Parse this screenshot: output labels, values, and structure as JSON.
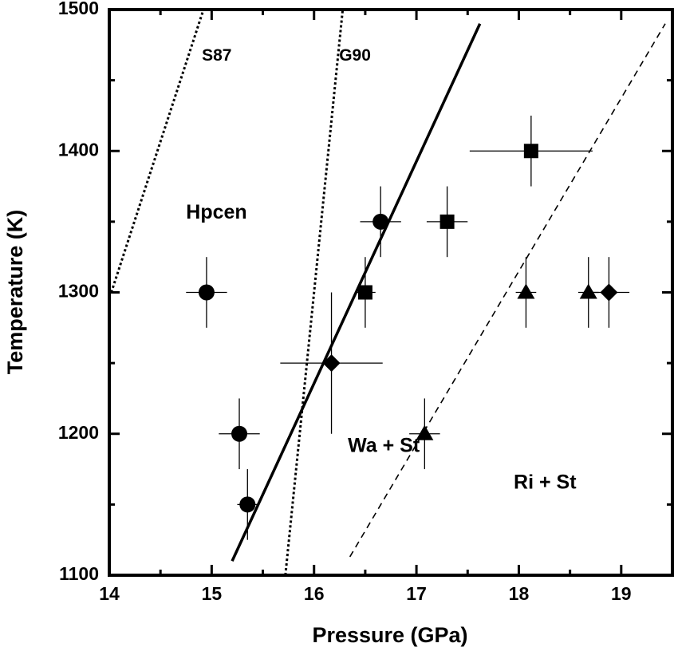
{
  "chart_data": {
    "type": "scatter",
    "xlabel": "Pressure (GPa)",
    "ylabel": "Temperature (K)",
    "xlim": [
      14,
      19.5
    ],
    "ylim": [
      1100,
      1500
    ],
    "x_ticks": [
      "14",
      "15",
      "16",
      "17",
      "18",
      "19"
    ],
    "y_ticks": [
      "1100",
      "1200",
      "1300",
      "1400",
      "1500"
    ],
    "grid": false,
    "region_labels": [
      {
        "text": "Hpcen",
        "x": 14.75,
        "y": 1356
      },
      {
        "text": "Wa + St",
        "x": 16.33,
        "y": 1191
      },
      {
        "text": "Ri + St",
        "x": 17.95,
        "y": 1165
      }
    ],
    "lines": [
      {
        "label": "S87",
        "style": "dotted",
        "x": [
          14.02,
          14.92
        ],
        "y": [
          1300,
          1500
        ],
        "label_at": [
          15.05,
          1467
        ]
      },
      {
        "label": "G90",
        "style": "dotted",
        "x": [
          15.72,
          16.28
        ],
        "y": [
          1100,
          1500
        ],
        "label_at": [
          16.4,
          1467
        ]
      },
      {
        "label": "",
        "style": "solid",
        "x": [
          15.2,
          17.62
        ],
        "y": [
          1110,
          1490
        ]
      },
      {
        "label": "",
        "style": "dashed",
        "x": [
          16.35,
          19.43
        ],
        "y": [
          1113,
          1490
        ]
      }
    ],
    "series": [
      {
        "marker": "circle",
        "points": [
          {
            "x": 14.95,
            "y": 1300,
            "xerr": 0.2,
            "yerr": 25
          },
          {
            "x": 16.65,
            "y": 1350,
            "xerr": 0.2,
            "yerr": 25
          },
          {
            "x": 15.27,
            "y": 1200,
            "xerr": 0.2,
            "yerr": 25
          },
          {
            "x": 15.35,
            "y": 1150,
            "xerr": 0.1,
            "yerr": 25
          }
        ]
      },
      {
        "marker": "square",
        "points": [
          {
            "x": 16.5,
            "y": 1300,
            "xerr": 0.1,
            "yerr": 25
          },
          {
            "x": 17.3,
            "y": 1350,
            "xerr": 0.2,
            "yerr": 25
          },
          {
            "x": 18.12,
            "y": 1400,
            "xerr": 0.6,
            "yerr": 25
          }
        ]
      },
      {
        "marker": "diamond",
        "points": [
          {
            "x": 16.17,
            "y": 1250,
            "xerr": 0.5,
            "yerr": 50
          },
          {
            "x": 18.88,
            "y": 1300,
            "xerr": 0.2,
            "yerr": 25
          }
        ]
      },
      {
        "marker": "triangle",
        "points": [
          {
            "x": 18.07,
            "y": 1300,
            "xerr": 0.1,
            "yerr": 25
          },
          {
            "x": 18.68,
            "y": 1300,
            "xerr": 0.1,
            "yerr": 25
          },
          {
            "x": 17.08,
            "y": 1200,
            "xerr": 0.15,
            "yerr": 25
          }
        ]
      }
    ]
  }
}
